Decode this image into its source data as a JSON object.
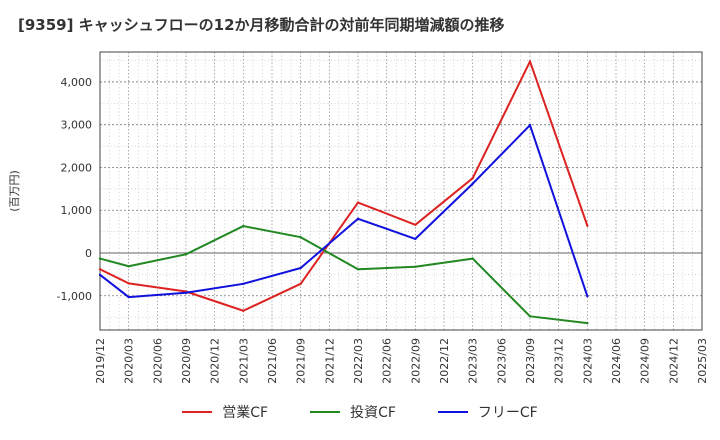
{
  "title": "[9359]  キャッシュフローの12か月移動合計の対前年同期増減額の推移",
  "chart_data": {
    "type": "line",
    "title": "[9359]  キャッシュフローの12か月移動合計の対前年同期増減額の推移",
    "xlabel": "",
    "ylabel": "(百万円)",
    "ylim": [
      -1800,
      4700
    ],
    "yticks": [
      -1000,
      0,
      1000,
      2000,
      3000,
      4000
    ],
    "ytick_labels": [
      "-1,000",
      "0",
      "1,000",
      "2,000",
      "3,000",
      "4,000"
    ],
    "xticks": [
      "2019/12",
      "2020/03",
      "2020/06",
      "2020/09",
      "2020/12",
      "2021/03",
      "2021/06",
      "2021/09",
      "2021/12",
      "2022/03",
      "2022/06",
      "2022/09",
      "2022/12",
      "2023/03",
      "2023/06",
      "2023/09",
      "2023/12",
      "2024/03",
      "2024/06",
      "2024/09",
      "2024/12",
      "2025/03"
    ],
    "grid": true,
    "legend_position": "bottom",
    "series": [
      {
        "name": "営業CF",
        "color": "#dd2222",
        "points": [
          {
            "x": "2019/12",
            "y": -380
          },
          {
            "x": "2020/03",
            "y": -710
          },
          {
            "x": "2020/09",
            "y": -900
          },
          {
            "x": "2021/03",
            "y": -1350
          },
          {
            "x": "2021/09",
            "y": -720
          },
          {
            "x": "2022/03",
            "y": 1180
          },
          {
            "x": "2022/09",
            "y": 660
          },
          {
            "x": "2023/03",
            "y": 1750
          },
          {
            "x": "2023/09",
            "y": 4480
          },
          {
            "x": "2024/03",
            "y": 640
          }
        ]
      },
      {
        "name": "投資CF",
        "color": "#228822",
        "points": [
          {
            "x": "2019/12",
            "y": -130
          },
          {
            "x": "2020/03",
            "y": -310
          },
          {
            "x": "2020/09",
            "y": -30
          },
          {
            "x": "2021/03",
            "y": 630
          },
          {
            "x": "2021/09",
            "y": 370
          },
          {
            "x": "2022/03",
            "y": -380
          },
          {
            "x": "2022/09",
            "y": -320
          },
          {
            "x": "2023/03",
            "y": -130
          },
          {
            "x": "2023/09",
            "y": -1480
          },
          {
            "x": "2024/03",
            "y": -1640
          }
        ]
      },
      {
        "name": "フリーCF",
        "color": "#1111dd",
        "points": [
          {
            "x": "2019/12",
            "y": -510
          },
          {
            "x": "2020/03",
            "y": -1030
          },
          {
            "x": "2020/09",
            "y": -930
          },
          {
            "x": "2021/03",
            "y": -720
          },
          {
            "x": "2021/09",
            "y": -350
          },
          {
            "x": "2022/03",
            "y": 800
          },
          {
            "x": "2022/09",
            "y": 330
          },
          {
            "x": "2023/03",
            "y": 1620
          },
          {
            "x": "2023/09",
            "y": 2990
          },
          {
            "x": "2024/03",
            "y": -1010
          }
        ]
      }
    ]
  }
}
